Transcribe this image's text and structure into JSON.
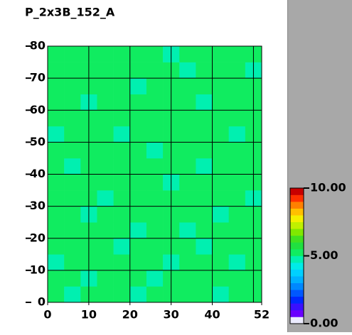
{
  "chart_data": {
    "type": "heatmap",
    "title": "P_2x3B_152_A",
    "xlim": [
      0,
      52
    ],
    "ylim": [
      0,
      80
    ],
    "xticks": [
      0,
      10,
      20,
      30,
      40,
      52
    ],
    "xgrid": [
      10,
      20,
      30,
      40,
      50
    ],
    "yticks": [
      0,
      10,
      20,
      30,
      40,
      50,
      60,
      70,
      80
    ],
    "grid": true,
    "clim": [
      0,
      10
    ],
    "cticks": [
      {
        "value": 0,
        "label": "0.00"
      },
      {
        "value": 5,
        "label": "5.00"
      },
      {
        "value": 10,
        "label": "10.00"
      }
    ],
    "colorscale": [
      "#ececff",
      "#6a00ff",
      "#3a10ff",
      "#0028ff",
      "#0058ff",
      "#0088ff",
      "#00b0ff",
      "#00d0ff",
      "#00ece8",
      "#00f0b0",
      "#10ec60",
      "#20e040",
      "#40e020",
      "#80e800",
      "#c0f000",
      "#f4f000",
      "#ffc000",
      "#ff8000",
      "#ff3000",
      "#c80000"
    ],
    "z": [
      [
        5.2,
        4.9,
        5.3,
        5.1,
        5.4,
        4.8,
        5.2,
        5.3,
        5.0,
        5.2,
        4.9,
        5.3,
        5.1
      ],
      [
        5.3,
        5.1,
        4.8,
        5.2,
        5.3,
        5.1,
        4.9,
        5.2,
        5.4,
        5.0,
        5.2,
        5.1,
        5.3
      ],
      [
        4.9,
        5.2,
        5.3,
        5.0,
        5.1,
        5.3,
        5.2,
        4.8,
        5.1,
        5.3,
        5.2,
        4.9,
        5.2
      ],
      [
        5.1,
        5.3,
        5.1,
        5.2,
        4.9,
        5.2,
        5.3,
        5.1,
        5.2,
        4.9,
        5.3,
        5.2,
        5.0
      ],
      [
        5.3,
        5.0,
        5.2,
        5.3,
        5.2,
        4.9,
        5.1,
        5.3,
        4.9,
        5.2,
        5.1,
        5.3,
        5.2
      ],
      [
        5.2,
        5.2,
        4.9,
        5.1,
        5.3,
        5.2,
        5.0,
        5.2,
        5.3,
        5.1,
        4.8,
        5.2,
        5.3
      ],
      [
        5.0,
        5.3,
        5.2,
        4.9,
        5.1,
        5.3,
        5.2,
        5.1,
        5.0,
        5.3,
        5.2,
        5.1,
        4.9
      ],
      [
        5.2,
        5.1,
        5.3,
        5.2,
        5.0,
        5.1,
        5.3,
        4.9,
        5.2,
        5.2,
        5.3,
        5.0,
        5.2
      ],
      [
        5.3,
        4.9,
        5.1,
        5.3,
        5.2,
        5.0,
        5.2,
        5.3,
        5.1,
        4.9,
        5.2,
        5.3,
        5.1
      ],
      [
        5.1,
        5.2,
        5.3,
        5.0,
        5.3,
        5.2,
        4.9,
        5.1,
        5.3,
        5.2,
        5.0,
        5.2,
        5.3
      ],
      [
        4.9,
        5.3,
        5.2,
        5.1,
        4.9,
        5.3,
        5.2,
        5.2,
        5.0,
        5.3,
        5.1,
        4.9,
        5.2
      ],
      [
        5.2,
        5.0,
        5.1,
        5.3,
        5.2,
        5.1,
        5.3,
        5.0,
        5.2,
        5.1,
        5.3,
        5.2,
        5.0
      ],
      [
        5.3,
        5.2,
        4.9,
        5.2,
        5.1,
        5.2,
        5.0,
        5.3,
        5.3,
        4.9,
        5.2,
        5.1,
        5.3
      ],
      [
        5.1,
        5.3,
        5.2,
        5.0,
        5.3,
        4.9,
        5.2,
        5.1,
        5.2,
        5.3,
        5.0,
        5.3,
        5.2
      ],
      [
        5.2,
        5.1,
        5.3,
        5.2,
        5.0,
        5.3,
        5.1,
        5.2,
        4.9,
        5.2,
        5.3,
        5.1,
        4.9
      ],
      [
        5.0,
        5.2,
        5.1,
        5.3,
        5.2,
        5.1,
        5.3,
        4.9,
        5.2,
        5.1,
        5.2,
        5.3,
        5.2
      ]
    ]
  }
}
